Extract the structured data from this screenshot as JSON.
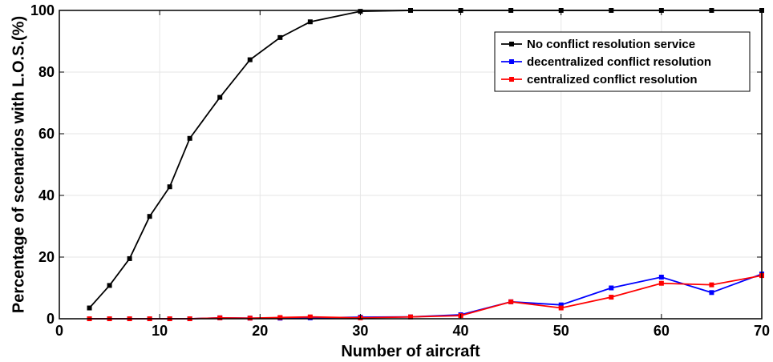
{
  "chart_data": {
    "type": "line",
    "xlabel": "Number of aircraft",
    "ylabel": "Percentage of scenarios with L.O.S.(%)",
    "xlim": [
      0,
      70
    ],
    "ylim": [
      0,
      100
    ],
    "xticks": [
      0,
      10,
      20,
      30,
      40,
      50,
      60,
      70
    ],
    "yticks": [
      0,
      20,
      40,
      60,
      80,
      100
    ],
    "grid": true,
    "legend_position": "top-right",
    "series": [
      {
        "name": "No conflict resolution service",
        "color": "#000000",
        "marker": "square",
        "x": [
          3,
          5,
          7,
          9,
          11,
          13,
          16,
          19,
          22,
          25,
          30,
          35,
          40,
          45,
          50,
          55,
          60,
          65,
          70
        ],
        "y": [
          3.5,
          10.8,
          19.5,
          33.2,
          42.8,
          58.5,
          71.8,
          84.0,
          91.2,
          96.3,
          99.7,
          100,
          100,
          100,
          100,
          100,
          100,
          100,
          100
        ]
      },
      {
        "name": "decentralized conflict resolution",
        "color": "#0000ff",
        "marker": "square",
        "x": [
          3,
          5,
          7,
          9,
          11,
          13,
          16,
          19,
          22,
          25,
          30,
          35,
          40,
          45,
          50,
          55,
          60,
          65,
          70
        ],
        "y": [
          0,
          0,
          0,
          0,
          0,
          0,
          0.3,
          0.2,
          0.2,
          0.3,
          0.5,
          0.6,
          1.3,
          5.5,
          4.5,
          10.0,
          13.5,
          8.5,
          14.5
        ]
      },
      {
        "name": "centralized conflict resolution",
        "color": "#ff0000",
        "marker": "square",
        "x": [
          3,
          5,
          7,
          9,
          11,
          13,
          16,
          19,
          22,
          25,
          30,
          35,
          40,
          45,
          50,
          55,
          60,
          65,
          70
        ],
        "y": [
          0,
          0,
          0,
          0,
          0,
          0,
          0.3,
          0.2,
          0.4,
          0.6,
          0.3,
          0.6,
          1.0,
          5.5,
          3.5,
          7.0,
          11.5,
          11.0,
          14.0
        ]
      }
    ]
  }
}
